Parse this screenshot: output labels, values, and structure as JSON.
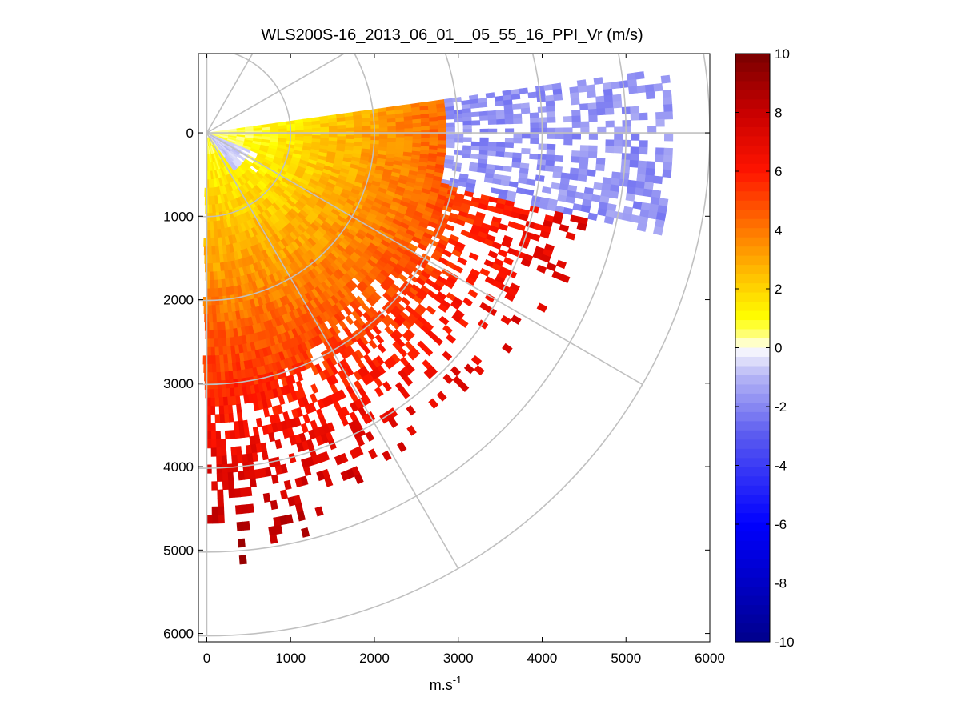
{
  "chart_data": {
    "type": "heatmap",
    "subtype": "polar PPI scan (radial velocity)",
    "title": "WLS200S-16_2013_06_01__05_55_16_PPI_Vr (m/s)",
    "xlabel_base": "m.s",
    "xlabel_exp": "-1",
    "xlim": [
      -100,
      6000
    ],
    "ylim": [
      6100,
      -950
    ],
    "y_axis_reversed": true,
    "x_ticks": [
      "0",
      "1000",
      "2000",
      "3000",
      "4000",
      "5000",
      "6000"
    ],
    "y_ticks": [
      "0",
      "1000",
      "2000",
      "3000",
      "4000",
      "5000",
      "6000"
    ],
    "grid": "polar (range rings every 1000 m, radials every 30 deg)",
    "colorbar": {
      "label": "",
      "range": [
        -10,
        10
      ],
      "ticks": [
        "10",
        "8",
        "6",
        "4",
        "2",
        "0",
        "-2",
        "-4",
        "-6",
        "-8",
        "-10"
      ],
      "colormap": "white-centered blue (negative) to yellow-red (positive)"
    },
    "scan": {
      "azimuth_range_deg": [
        -8,
        90
      ],
      "max_range_m": 6000,
      "approx_field": [
        {
          "region": "near range 0-1000 m",
          "velocity_ms": "0 to -1"
        },
        {
          "region": "east, azimuth -8 to 10 deg, 3000-5500 m",
          "velocity_ms": "-1 to -3"
        },
        {
          "region": "1000-3000 m",
          "velocity_ms": "1 to 4"
        },
        {
          "region": "3000-4500 m",
          "velocity_ms": "4 to 7"
        },
        {
          "region": "4500-5500 m, south",
          "velocity_ms": "7 to 9"
        }
      ]
    }
  }
}
